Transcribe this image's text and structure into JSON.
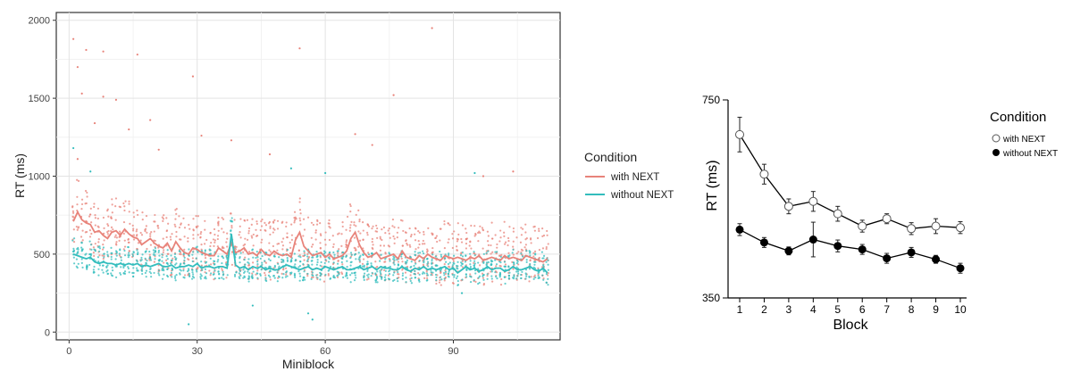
{
  "chart_data": [
    {
      "type": "scatter+line",
      "title": "",
      "xlabel": "Miniblock",
      "ylabel": "RT (ms)",
      "xlim": [
        -3,
        115
      ],
      "ylim": [
        -50,
        2050
      ],
      "x_ticks": [
        0,
        30,
        60,
        90
      ],
      "y_ticks": [
        0,
        500,
        1000,
        1500,
        2000
      ],
      "grid": true,
      "legend": {
        "title": "Condition",
        "position": "right",
        "entries": [
          {
            "label": "with NEXT",
            "color": "#e8837a"
          },
          {
            "label": "without NEXT",
            "color": "#33bdbd"
          }
        ]
      },
      "x": [
        1,
        2,
        3,
        4,
        5,
        6,
        7,
        8,
        9,
        10,
        11,
        12,
        13,
        14,
        15,
        16,
        17,
        18,
        19,
        20,
        21,
        22,
        23,
        24,
        25,
        26,
        27,
        28,
        29,
        30,
        31,
        32,
        33,
        34,
        35,
        36,
        37,
        38,
        39,
        40,
        41,
        42,
        43,
        44,
        45,
        46,
        47,
        48,
        49,
        50,
        51,
        52,
        53,
        54,
        55,
        56,
        57,
        58,
        59,
        60,
        61,
        62,
        63,
        64,
        65,
        66,
        67,
        68,
        69,
        70,
        71,
        72,
        73,
        74,
        75,
        76,
        77,
        78,
        79,
        80,
        81,
        82,
        83,
        84,
        85,
        86,
        87,
        88,
        89,
        90,
        91,
        92,
        93,
        94,
        95,
        96,
        97,
        98,
        99,
        100,
        101,
        102,
        103,
        104,
        105,
        106,
        107,
        108,
        109,
        110,
        111,
        112
      ],
      "series": [
        {
          "name": "with NEXT",
          "color": "#e8837a",
          "values": [
            710,
            770,
            720,
            700,
            690,
            640,
            650,
            620,
            600,
            640,
            650,
            620,
            660,
            630,
            610,
            600,
            560,
            580,
            600,
            570,
            550,
            540,
            570,
            520,
            580,
            540,
            510,
            500,
            540,
            530,
            510,
            500,
            490,
            490,
            540,
            520,
            500,
            570,
            510,
            520,
            540,
            500,
            510,
            490,
            530,
            500,
            490,
            520,
            500,
            490,
            500,
            480,
            590,
            640,
            550,
            520,
            490,
            500,
            510,
            480,
            500,
            470,
            480,
            490,
            520,
            600,
            640,
            560,
            510,
            480,
            490,
            510,
            470,
            480,
            490,
            500,
            470,
            520,
            480,
            470,
            460,
            490,
            470,
            500,
            480,
            470,
            460,
            490,
            480,
            470,
            480,
            470,
            460,
            480,
            470,
            490,
            460,
            470,
            480,
            470,
            460,
            490,
            470,
            480,
            470,
            460,
            490,
            480,
            470,
            460,
            450,
            470
          ]
        },
        {
          "name": "without NEXT",
          "color": "#33bdbd",
          "values": [
            500,
            490,
            480,
            470,
            480,
            450,
            440,
            450,
            440,
            440,
            430,
            440,
            430,
            440,
            430,
            440,
            420,
            430,
            420,
            430,
            440,
            420,
            420,
            430,
            410,
            420,
            420,
            430,
            420,
            440,
            410,
            420,
            420,
            410,
            420,
            420,
            410,
            630,
            430,
            410,
            420,
            400,
            420,
            410,
            420,
            400,
            410,
            400,
            400,
            420,
            430,
            420,
            410,
            400,
            410,
            420,
            400,
            410,
            400,
            420,
            410,
            400,
            410,
            420,
            400,
            400,
            410,
            420,
            400,
            410,
            420,
            400,
            420,
            410,
            410,
            400,
            400,
            420,
            400,
            390,
            410,
            400,
            420,
            400,
            410,
            400,
            410,
            420,
            400,
            410,
            380,
            400,
            420,
            400,
            410,
            390,
            400,
            420,
            400,
            410,
            410,
            390,
            400,
            420,
            400,
            400,
            410,
            420,
            400,
            390,
            410,
            380
          ]
        }
      ],
      "outliers_with_next": [
        {
          "x": 1,
          "y": 1880
        },
        {
          "x": 2,
          "y": 1700
        },
        {
          "x": 3,
          "y": 1530
        },
        {
          "x": 4,
          "y": 1810
        },
        {
          "x": 8,
          "y": 1800
        },
        {
          "x": 2,
          "y": 1110
        },
        {
          "x": 8,
          "y": 1510
        },
        {
          "x": 11,
          "y": 1490
        },
        {
          "x": 16,
          "y": 1780
        },
        {
          "x": 19,
          "y": 1360
        },
        {
          "x": 29,
          "y": 1640
        },
        {
          "x": 31,
          "y": 1260
        },
        {
          "x": 54,
          "y": 1820
        },
        {
          "x": 76,
          "y": 1520
        },
        {
          "x": 85,
          "y": 1950
        },
        {
          "x": 6,
          "y": 1340
        },
        {
          "x": 14,
          "y": 1300
        },
        {
          "x": 21,
          "y": 1170
        },
        {
          "x": 38,
          "y": 1230
        },
        {
          "x": 47,
          "y": 1140
        },
        {
          "x": 67,
          "y": 1270
        },
        {
          "x": 71,
          "y": 1200
        },
        {
          "x": 104,
          "y": 1030
        },
        {
          "x": 97,
          "y": 1000
        }
      ],
      "outliers_without_next": [
        {
          "x": 1,
          "y": 1180
        },
        {
          "x": 5,
          "y": 1030
        },
        {
          "x": 52,
          "y": 1050
        },
        {
          "x": 60,
          "y": 1020
        },
        {
          "x": 95,
          "y": 1020
        },
        {
          "x": 28,
          "y": 50
        },
        {
          "x": 56,
          "y": 120
        },
        {
          "x": 57,
          "y": 80
        },
        {
          "x": 43,
          "y": 170
        },
        {
          "x": 92,
          "y": 250
        }
      ]
    },
    {
      "type": "line",
      "title": "",
      "xlabel": "Block",
      "ylabel": "RT (ms)",
      "xlim": [
        0.5,
        10.5
      ],
      "ylim": [
        350,
        750
      ],
      "x_ticks": [
        1,
        2,
        3,
        4,
        5,
        6,
        7,
        8,
        9,
        10
      ],
      "y_ticks": [
        350,
        750
      ],
      "grid": false,
      "legend": {
        "title": "Condition",
        "position": "right",
        "entries": [
          {
            "label": "with NEXT",
            "marker": "open-circle"
          },
          {
            "label": "without NEXT",
            "marker": "filled-circle"
          }
        ]
      },
      "categories": [
        1,
        2,
        3,
        4,
        5,
        6,
        7,
        8,
        9,
        10
      ],
      "series": [
        {
          "name": "with NEXT",
          "marker": "open-circle",
          "values": [
            680,
            600,
            535,
            545,
            520,
            495,
            510,
            490,
            495,
            492
          ],
          "error": [
            35,
            20,
            15,
            20,
            15,
            12,
            10,
            12,
            15,
            12
          ]
        },
        {
          "name": "without NEXT",
          "marker": "filled-circle",
          "values": [
            488,
            462,
            445,
            468,
            455,
            448,
            430,
            442,
            428,
            410
          ],
          "error": [
            12,
            10,
            8,
            35,
            12,
            10,
            10,
            10,
            8,
            10
          ]
        }
      ]
    }
  ]
}
